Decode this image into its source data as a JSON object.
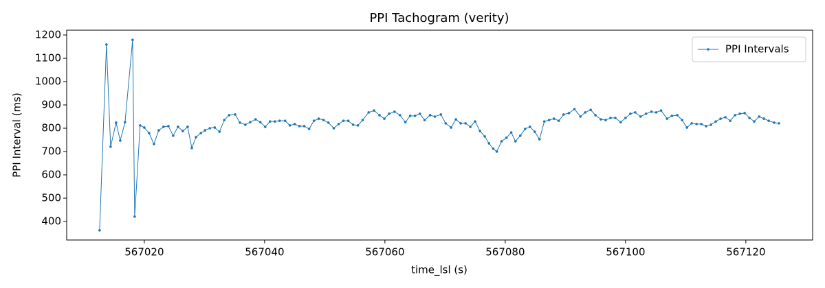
{
  "chart_data": {
    "type": "line",
    "title": "PPI Tachogram (verity)",
    "x_label": "time_lsl (s)",
    "y_label": "PPI Interval (ms)",
    "x": [
      567012.57,
      567013.71,
      567014.4,
      567015.31,
      567016.0,
      567016.8,
      567018.06,
      567018.4,
      567019.31,
      567020.0,
      567020.8,
      567021.6,
      567022.4,
      567023.2,
      567024.0,
      567024.8,
      567025.6,
      567026.4,
      567027.2,
      567027.9,
      567028.6,
      567029.4,
      567030.1,
      567030.9,
      567031.7,
      567032.5,
      567033.3,
      567034.1,
      567035.1,
      567035.9,
      567036.8,
      567037.6,
      567038.5,
      567039.3,
      567040.1,
      567040.9,
      567041.7,
      567042.5,
      567043.4,
      567044.2,
      567045.0,
      567045.8,
      567046.6,
      567047.4,
      567048.2,
      567049.0,
      567049.8,
      567050.6,
      567051.5,
      567052.3,
      567053.1,
      567053.9,
      567054.7,
      567055.5,
      567056.3,
      567057.3,
      567058.2,
      567059.1,
      567059.9,
      567060.7,
      567061.6,
      567062.5,
      567063.4,
      567064.2,
      567065.0,
      567065.8,
      567066.6,
      567067.5,
      567068.3,
      567069.3,
      567070.1,
      567071.0,
      567071.8,
      567072.6,
      567073.4,
      567074.2,
      567075.0,
      567075.8,
      567076.6,
      567077.3,
      567078.0,
      567078.6,
      567079.4,
      567080.2,
      567081.0,
      567081.7,
      567082.5,
      567083.3,
      567084.1,
      567084.9,
      567085.7,
      567086.5,
      567087.3,
      567088.1,
      567088.9,
      567089.7,
      567090.6,
      567091.5,
      567092.5,
      567093.3,
      567094.2,
      567095.0,
      567095.9,
      567096.7,
      567097.5,
      567098.3,
      567099.2,
      567100.0,
      567100.8,
      567101.6,
      567102.5,
      567103.4,
      567104.3,
      567105.1,
      567105.9,
      567106.9,
      567107.7,
      567108.6,
      567109.4,
      567110.2,
      567111.0,
      567111.8,
      567112.6,
      567113.4,
      567114.2,
      567115.0,
      567115.8,
      567116.6,
      567117.4,
      567118.2,
      567119.0,
      567119.8,
      567120.6,
      567121.4,
      567122.2,
      567123.0,
      567123.8,
      567124.7,
      567125.5
    ],
    "series": [
      {
        "name": "PPI Intervals",
        "color": "#1f77b4",
        "values": [
          362,
          1159,
          721,
          824,
          747,
          826,
          1179,
          421,
          812,
          803,
          779,
          732,
          791,
          806,
          809,
          768,
          806,
          788,
          806,
          715,
          762,
          779,
          791,
          800,
          803,
          785,
          835,
          856,
          859,
          824,
          815,
          826,
          838,
          826,
          806,
          829,
          829,
          832,
          832,
          812,
          818,
          809,
          809,
          797,
          832,
          841,
          835,
          824,
          800,
          818,
          832,
          832,
          815,
          812,
          835,
          868,
          876,
          856,
          841,
          862,
          871,
          856,
          826,
          853,
          853,
          862,
          835,
          856,
          850,
          859,
          821,
          803,
          838,
          821,
          821,
          806,
          829,
          788,
          765,
          735,
          712,
          700,
          744,
          759,
          782,
          744,
          768,
          797,
          806,
          785,
          753,
          829,
          835,
          841,
          832,
          859,
          865,
          882,
          850,
          868,
          879,
          856,
          838,
          835,
          844,
          844,
          826,
          844,
          862,
          868,
          850,
          862,
          871,
          868,
          876,
          841,
          853,
          856,
          835,
          803,
          821,
          818,
          818,
          809,
          815,
          829,
          841,
          847,
          832,
          856,
          862,
          865,
          844,
          829,
          850,
          841,
          832,
          824,
          821
        ]
      }
    ],
    "xlim": [
      567007.1,
      567131.1
    ],
    "ylim": [
      320.6,
      1220.6
    ],
    "xticks": [
      567020,
      567040,
      567060,
      567080,
      567100,
      567120
    ],
    "yticks": [
      400,
      500,
      600,
      700,
      800,
      900,
      1000,
      1100,
      1200
    ],
    "legend": "upper right",
    "grid": false
  }
}
